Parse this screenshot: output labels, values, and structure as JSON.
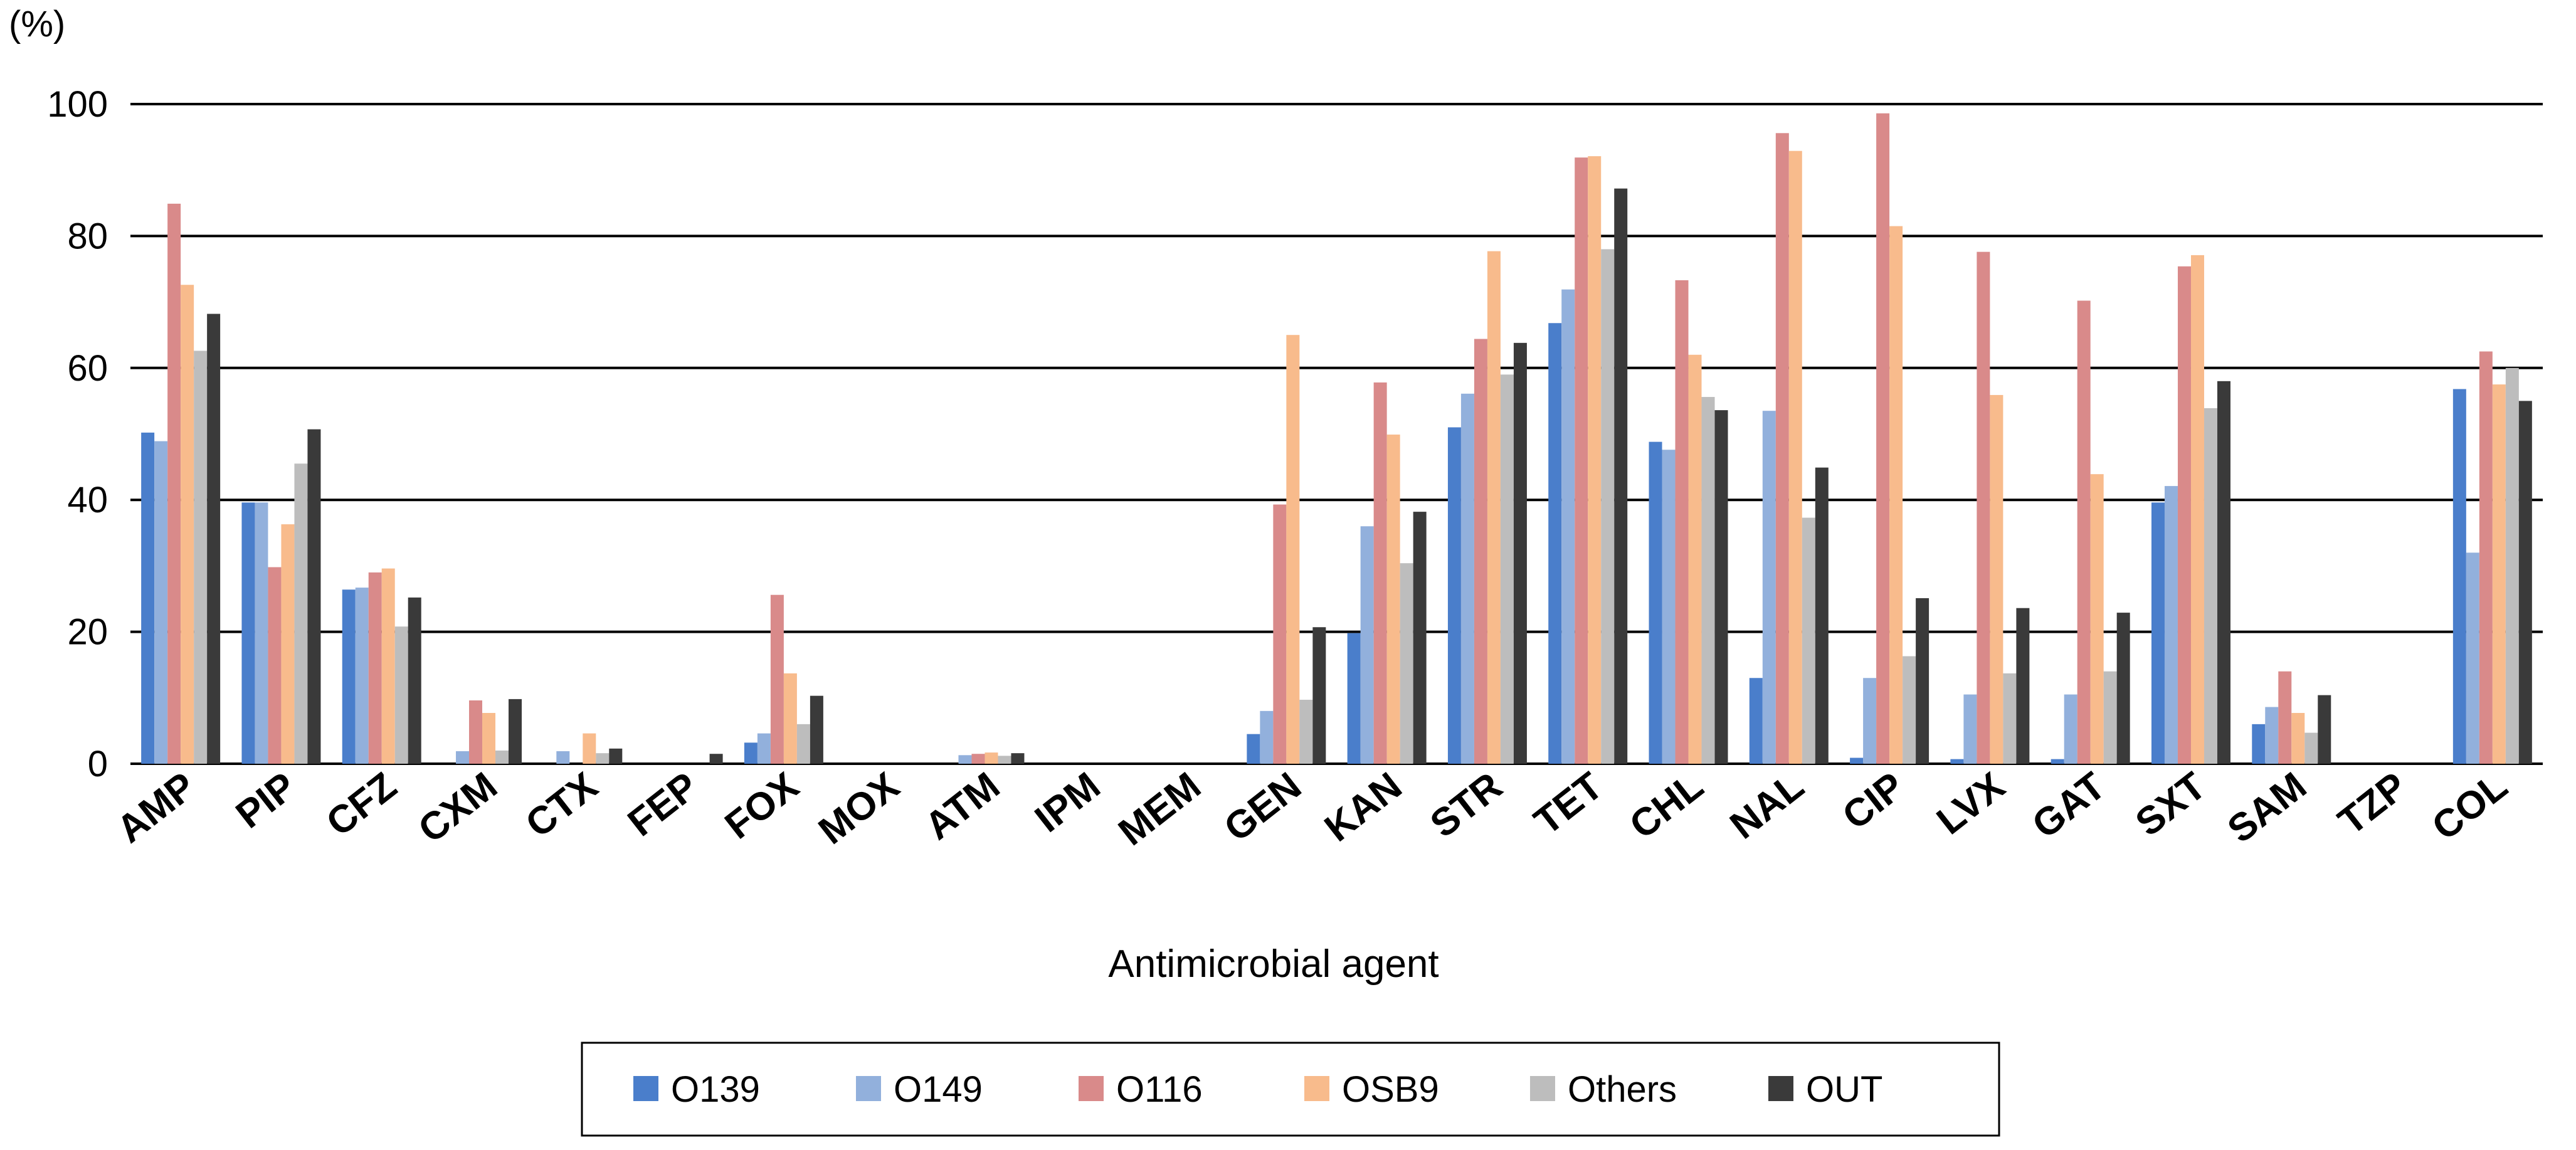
{
  "chart_data": {
    "type": "bar",
    "title": "",
    "xlabel": "Antimicrobial agent",
    "ylabel": "(%)",
    "ylim": [
      0,
      100
    ],
    "yticks": [
      "0",
      "20",
      "40",
      "60",
      "80",
      "100"
    ],
    "grid": true,
    "legend_position": "bottom",
    "categories": [
      "AMP",
      "PIP",
      "CFZ",
      "CXM",
      "CTX",
      "FEP",
      "FOX",
      "MOX",
      "ATM",
      "IPM",
      "MEM",
      "GEN",
      "KAN",
      "STR",
      "TET",
      "CHL",
      "NAL",
      "CIP",
      "LVX",
      "GAT",
      "SXT",
      "SAM",
      "TZP",
      "COL"
    ],
    "series": [
      {
        "name": "O139",
        "color": "#4a7ecb",
        "values": [
          50.2,
          39.6,
          26.4,
          0,
          0,
          0,
          3.2,
          0,
          0,
          0,
          0,
          4.5,
          19.8,
          51.0,
          66.8,
          48.8,
          13.0,
          0.9,
          0.7,
          0.7,
          39.6,
          6.0,
          0,
          56.8
        ]
      },
      {
        "name": "O149",
        "color": "#92b0dc",
        "values": [
          48.9,
          39.6,
          26.7,
          1.9,
          1.9,
          0,
          4.6,
          0,
          1.3,
          0,
          0,
          8.0,
          36.0,
          56.1,
          71.9,
          47.6,
          53.5,
          13.0,
          10.5,
          10.5,
          42.1,
          8.6,
          0,
          32.0
        ]
      },
      {
        "name": "O116",
        "color": "#d98a8a",
        "values": [
          84.9,
          29.8,
          29.0,
          9.6,
          0,
          0,
          25.6,
          0,
          1.5,
          0,
          0,
          39.3,
          57.8,
          64.4,
          91.9,
          73.3,
          95.6,
          98.6,
          77.6,
          70.2,
          75.4,
          14.0,
          0,
          62.5
        ]
      },
      {
        "name": "OSB9",
        "color": "#f8bb8c",
        "values": [
          72.6,
          36.3,
          29.6,
          7.7,
          4.6,
          0,
          13.7,
          0,
          1.7,
          0,
          0,
          65.0,
          49.9,
          77.7,
          92.1,
          62.0,
          92.9,
          81.5,
          55.9,
          43.9,
          77.1,
          7.7,
          0,
          57.5
        ]
      },
      {
        "name": "Others",
        "color": "#bdbdbd",
        "values": [
          62.6,
          45.5,
          20.8,
          2.0,
          1.6,
          0,
          6.0,
          0,
          1.2,
          0,
          0,
          9.7,
          30.4,
          59.0,
          78.0,
          55.6,
          37.3,
          16.3,
          13.7,
          14.0,
          53.9,
          4.7,
          0,
          60.0
        ]
      },
      {
        "name": "OUT",
        "color": "#3a3a3a",
        "values": [
          68.2,
          50.7,
          25.2,
          9.8,
          2.3,
          1.5,
          10.3,
          0,
          1.6,
          0,
          0,
          20.7,
          38.2,
          63.8,
          87.2,
          53.6,
          44.9,
          25.1,
          23.6,
          22.9,
          58.0,
          10.4,
          0,
          55.0
        ]
      }
    ]
  }
}
